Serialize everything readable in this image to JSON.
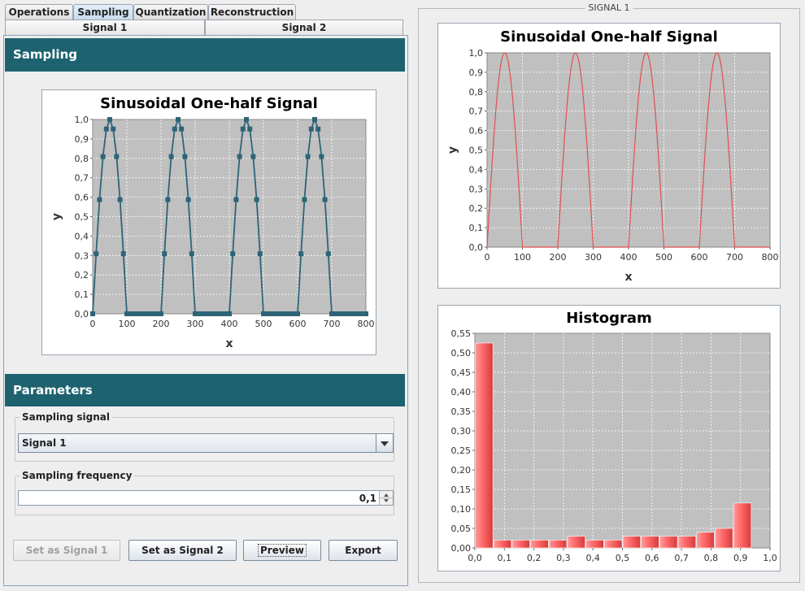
{
  "tabs": [
    "Operations",
    "Sampling",
    "Quantization",
    "Reconstruction"
  ],
  "selected_tab": "Sampling",
  "subtabs": [
    "Signal 1",
    "Signal 2"
  ],
  "sampling_header": "Sampling",
  "parameters_header": "Parameters",
  "sampling_signal": {
    "label": "Sampling signal",
    "value": "Signal 1"
  },
  "sampling_frequency": {
    "label": "Sampling frequency",
    "value": "0,1"
  },
  "buttons": {
    "set1": "Set as Signal 1",
    "set2": "Set as Signal 2",
    "preview": "Preview",
    "export": "Export"
  },
  "right_panel_title": "SIGNAL 1",
  "colors": {
    "header": "#1e6270",
    "plot_bg": "#c0c0c0",
    "sampled_series": "#2e6478",
    "signal_series": "#e05050",
    "hist_bar": "#ff6b6b"
  },
  "chart_data": [
    {
      "type": "line",
      "title": "Sinusoidal One-half Signal",
      "xlabel": "x",
      "ylabel": "y",
      "xlim": [
        0,
        800
      ],
      "ylim": [
        0,
        1
      ],
      "xticks": [
        "0",
        "100",
        "200",
        "300",
        "400",
        "500",
        "600",
        "700",
        "800"
      ],
      "yticks": [
        "0,0",
        "0,1",
        "0,2",
        "0,3",
        "0,4",
        "0,5",
        "0,6",
        "0,7",
        "0,8",
        "0,9",
        "1,0"
      ],
      "markers": "square",
      "period": 200,
      "pulse_width": 100,
      "sample_step": 10,
      "series": [
        {
          "values_note": "",
          "x_start": 0,
          "x_end": 800
        }
      ]
    },
    {
      "type": "line",
      "title": "Sinusoidal One-half Signal",
      "xlabel": "x",
      "ylabel": "y",
      "xlim": [
        0,
        800
      ],
      "ylim": [
        0,
        1
      ],
      "xticks": [
        "0",
        "100",
        "200",
        "300",
        "400",
        "500",
        "600",
        "700",
        "800"
      ],
      "yticks": [
        "0,0",
        "0,1",
        "0,2",
        "0,3",
        "0,4",
        "0,5",
        "0,6",
        "0,7",
        "0,8",
        "0,9",
        "1,0"
      ],
      "period": 200,
      "pulse_width": 100
    },
    {
      "type": "bar",
      "title": "Histogram",
      "xlim": [
        0,
        1
      ],
      "ylim": [
        0,
        0.55
      ],
      "xticks": [
        "0,0",
        "0,1",
        "0,2",
        "0,3",
        "0,4",
        "0,5",
        "0,6",
        "0,7",
        "0,8",
        "0,9",
        "1,0"
      ],
      "yticks": [
        "0,00",
        "0,05",
        "0,10",
        "0,15",
        "0,20",
        "0,25",
        "0,30",
        "0,35",
        "0,40",
        "0,45",
        "0,50",
        "0,55"
      ],
      "bin_width": 0.0625,
      "values": [
        0.525,
        0.02,
        0.02,
        0.02,
        0.02,
        0.03,
        0.02,
        0.02,
        0.03,
        0.03,
        0.03,
        0.03,
        0.04,
        0.05,
        0.115
      ]
    }
  ]
}
